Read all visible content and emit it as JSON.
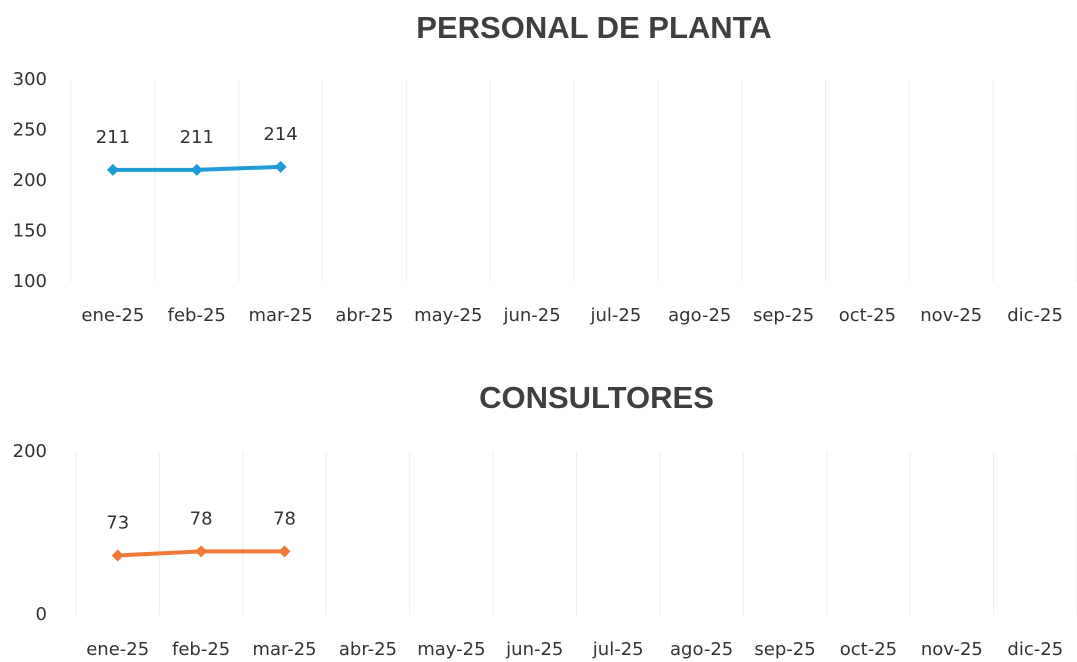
{
  "chart_data": [
    {
      "type": "line",
      "title": "PERSONAL DE PLANTA",
      "categories": [
        "ene-25",
        "feb-25",
        "mar-25",
        "abr-25",
        "may-25",
        "jun-25",
        "jul-25",
        "ago-25",
        "sep-25",
        "oct-25",
        "nov-25",
        "dic-25"
      ],
      "series": [
        {
          "color": "#1f9bd7",
          "values": [
            211,
            211,
            214,
            null,
            null,
            null,
            null,
            null,
            null,
            null,
            null,
            null
          ]
        }
      ],
      "ylim": [
        100,
        300
      ],
      "yticks": [
        100,
        150,
        200,
        250,
        300
      ]
    },
    {
      "type": "line",
      "title": "CONSULTORES",
      "categories": [
        "ene-25",
        "feb-25",
        "mar-25",
        "abr-25",
        "may-25",
        "jun-25",
        "jul-25",
        "ago-25",
        "sep-25",
        "oct-25",
        "nov-25",
        "dic-25"
      ],
      "series": [
        {
          "color": "#ef7a35",
          "values": [
            73,
            78,
            78,
            null,
            null,
            null,
            null,
            null,
            null,
            null,
            null,
            null
          ]
        }
      ],
      "ylim": [
        0,
        200
      ],
      "yticks": [
        0,
        200
      ]
    }
  ]
}
